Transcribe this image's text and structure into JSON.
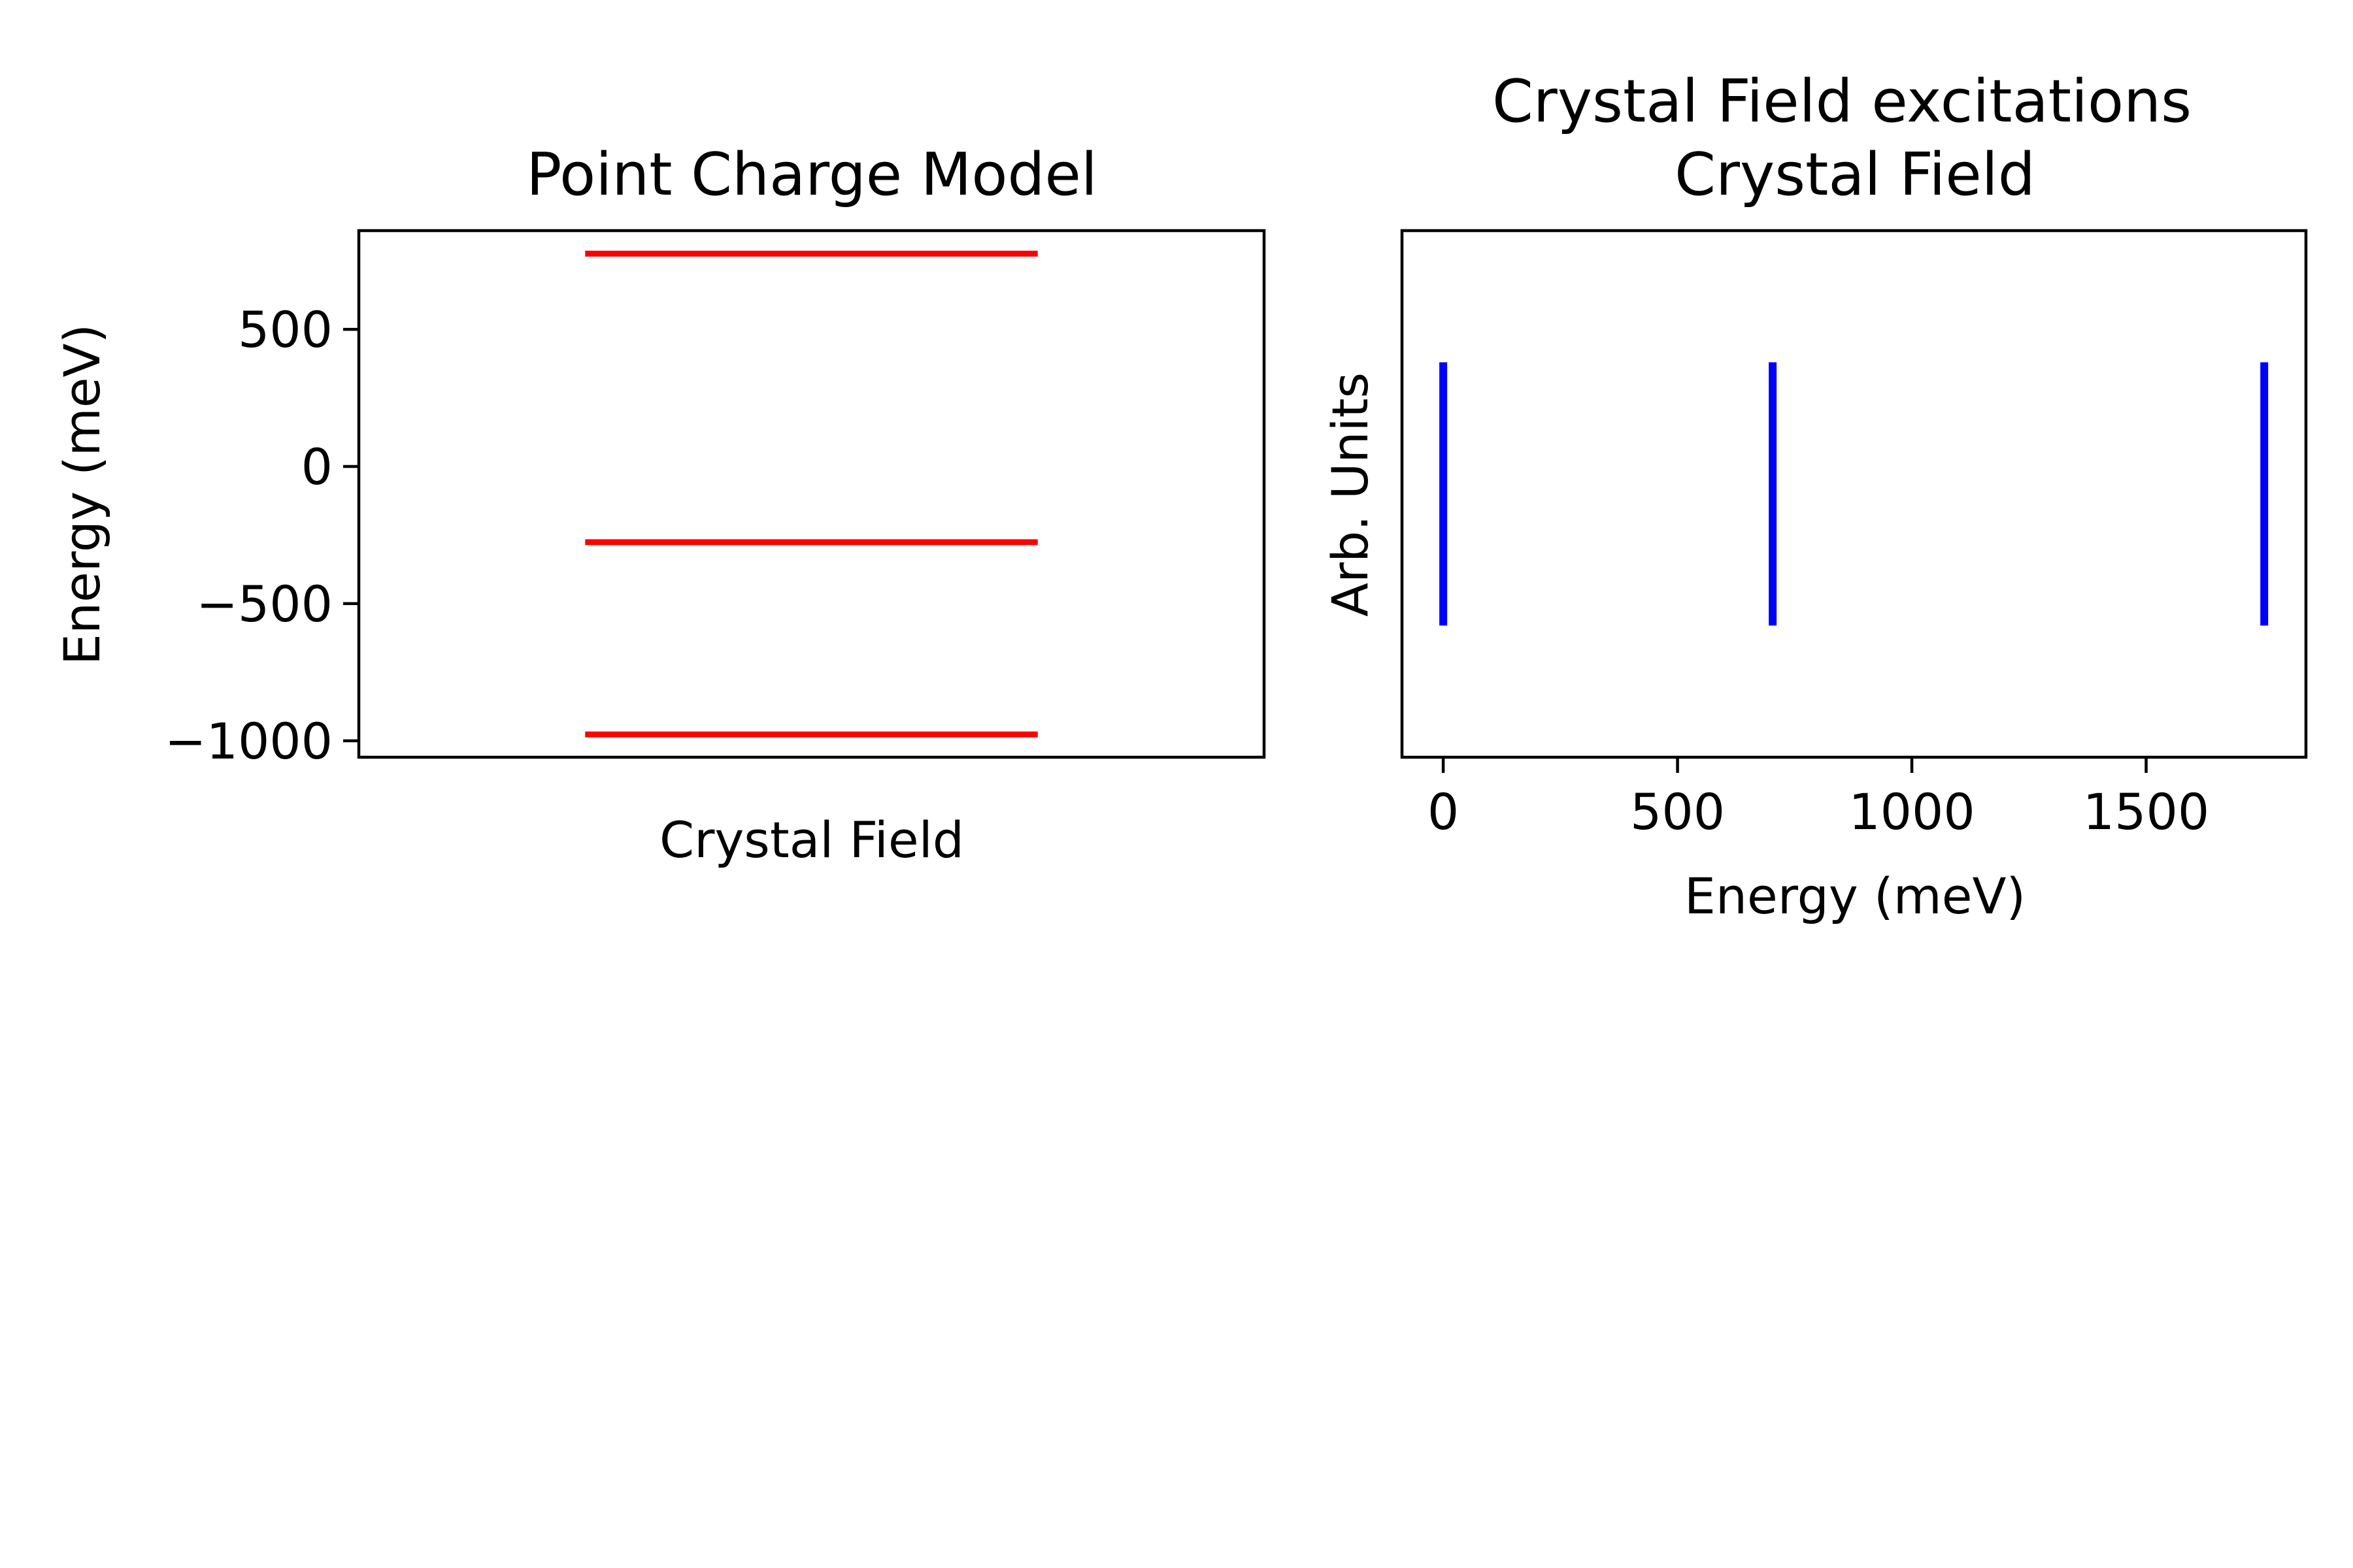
{
  "chart_data": [
    {
      "type": "line",
      "title": "Point Charge Model",
      "xlabel": "Crystal Field",
      "ylabel": "Energy (meV)",
      "xticks": [],
      "ylim": [
        -1060,
        860
      ],
      "yticks": [
        500,
        0,
        -500,
        -1000
      ],
      "ytick_labels": [
        "500",
        "0",
        "−500",
        "−1000"
      ],
      "levels": [
        776,
        -276,
        -977
      ],
      "level_xrange": [
        0.25,
        0.75
      ],
      "series_color": "#ff0000",
      "grid": false
    },
    {
      "type": "bar",
      "title": "Crystal Field excitations\nCrystal Field",
      "title_lines": [
        "Crystal Field excitations",
        "Crystal Field"
      ],
      "xlabel": "Energy (meV)",
      "ylabel": "Arb. Units",
      "xlim": [
        -88,
        1841
      ],
      "xticks": [
        0,
        500,
        1000,
        1500
      ],
      "xtick_labels": [
        "0",
        "500",
        "1000",
        "1500"
      ],
      "ylim": [
        -1,
        1
      ],
      "yticks": [],
      "excitations": [
        0,
        703,
        1752
      ],
      "line_yrange": [
        -0.5,
        0.5
      ],
      "series_color": "#0000ff",
      "grid": false
    }
  ]
}
